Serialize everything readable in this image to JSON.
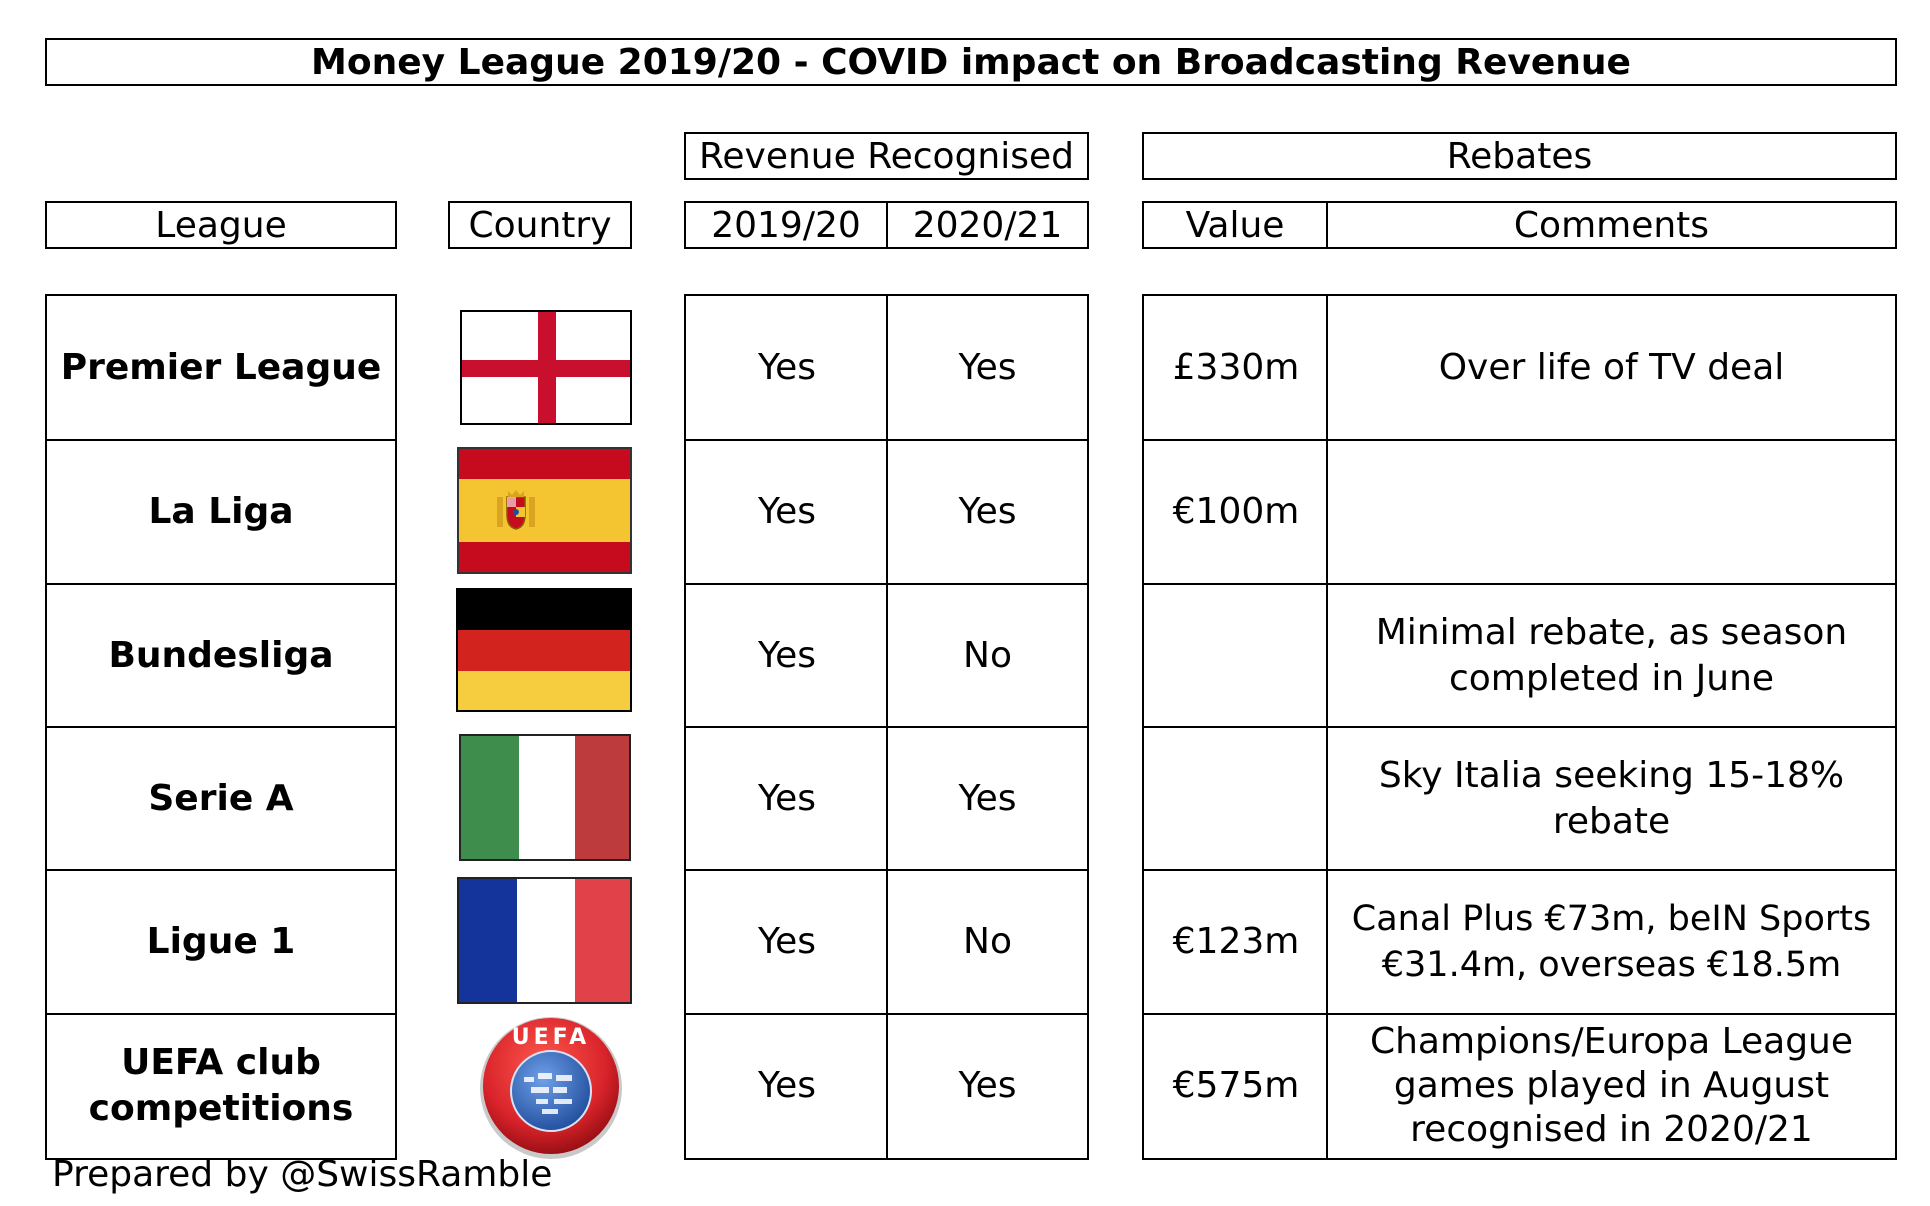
{
  "title": "Money League 2019/20 - COVID impact on Broadcasting Revenue",
  "headers": {
    "revenue_group": "Revenue Recognised",
    "rebates_group": "Rebates",
    "league": "League",
    "country": "Country",
    "y2019": "2019/20",
    "y2020": "2020/21",
    "value": "Value",
    "comments": "Comments"
  },
  "rows": [
    {
      "league": "Premier League",
      "flag": "england-flag",
      "y2019": "Yes",
      "y2020": "Yes",
      "value": "£330m",
      "comment": "Over life of TV deal"
    },
    {
      "league": "La Liga",
      "flag": "spain-flag",
      "y2019": "Yes",
      "y2020": "Yes",
      "value": "€100m",
      "comment": ""
    },
    {
      "league": "Bundesliga",
      "flag": "germany-flag",
      "y2019": "Yes",
      "y2020": "No",
      "value": "",
      "comment": "Minimal rebate, as season completed in June"
    },
    {
      "league": "Serie A",
      "flag": "italy-flag",
      "y2019": "Yes",
      "y2020": "Yes",
      "value": "",
      "comment": "Sky Italia seeking 15-18% rebate"
    },
    {
      "league": "Ligue 1",
      "flag": "france-flag",
      "y2019": "Yes",
      "y2020": "No",
      "value": "€123m",
      "comment": "Canal Plus €73m, beIN Sports €31.4m, overseas €18.5m"
    },
    {
      "league": "UEFA club competitions",
      "flag": "uefa-logo",
      "y2019": "Yes",
      "y2020": "Yes",
      "value": "€575m",
      "comment": "Champions/Europa League games played in August recognised in 2020/21"
    }
  ],
  "uefa_logo_text": "UEFA",
  "footer": "Prepared by @SwissRamble",
  "colors": {
    "england_red": "#c8102e",
    "spain_red": "#c60b1e",
    "spain_yellow": "#f4c531",
    "germany_black": "#000000",
    "germany_red": "#d2231e",
    "germany_gold": "#f6cd3f",
    "italy_green": "#3f8d4c",
    "italy_red": "#bd3a3d",
    "france_blue": "#14349c",
    "france_red": "#e1424a",
    "uefa_red": "#d8232a",
    "uefa_blue": "#2a5db0"
  }
}
